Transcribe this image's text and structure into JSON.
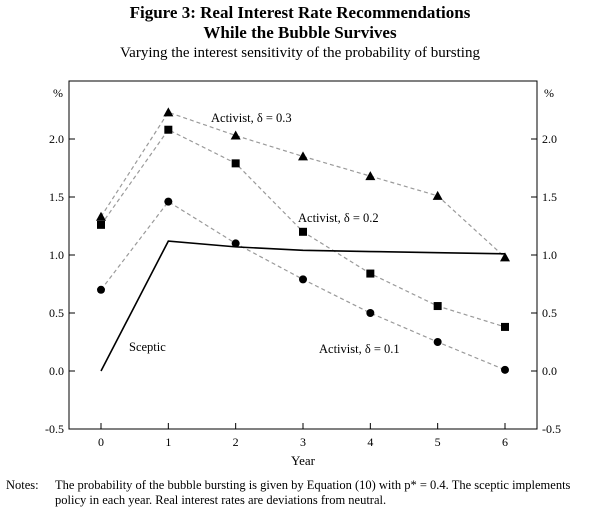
{
  "title_line1": "Figure 3: Real Interest Rate Recommendations",
  "title_line2": "While the Bubble Survives",
  "subtitle": "Varying the interest sensitivity of the probability of bursting",
  "notes_label": "Notes:",
  "notes_text": "The probability of the bubble bursting is given by Equation (10) with p* = 0.4. The sceptic implements policy in each year. Real interest rates are deviations from neutral.",
  "chart_data": {
    "type": "line",
    "xlabel": "Year",
    "ylabel_left": "%",
    "ylabel_right": "%",
    "x": [
      0,
      1,
      2,
      3,
      4,
      5,
      6
    ],
    "xticks": [
      "0",
      "1",
      "2",
      "3",
      "4",
      "5",
      "6"
    ],
    "ylim": [
      -0.5,
      2.5
    ],
    "yticks": [
      "-0.5",
      "0.0",
      "0.5",
      "1.0",
      "1.5",
      "2.0"
    ],
    "ytick_values": [
      -0.5,
      0.0,
      0.5,
      1.0,
      1.5,
      2.0
    ],
    "grid": false,
    "series": [
      {
        "name": "Activist, δ = 0.3",
        "marker": "triangle",
        "style": "dashed",
        "color": "#9a9a9a",
        "values": [
          1.33,
          2.23,
          2.03,
          1.85,
          1.68,
          1.51,
          0.98
        ]
      },
      {
        "name": "Activist, δ = 0.2",
        "marker": "square",
        "style": "dashed",
        "color": "#9a9a9a",
        "values": [
          1.26,
          2.08,
          1.79,
          1.2,
          0.84,
          0.56,
          0.38
        ]
      },
      {
        "name": "Activist, δ = 0.1",
        "marker": "circle",
        "style": "dashed",
        "color": "#9a9a9a",
        "values": [
          0.7,
          1.46,
          1.1,
          0.79,
          0.5,
          0.25,
          0.01
        ]
      },
      {
        "name": "Sceptic",
        "marker": "none",
        "style": "solid",
        "color": "#000000",
        "values": [
          0.0,
          1.12,
          1.07,
          1.04,
          1.03,
          1.02,
          1.01
        ]
      }
    ]
  }
}
